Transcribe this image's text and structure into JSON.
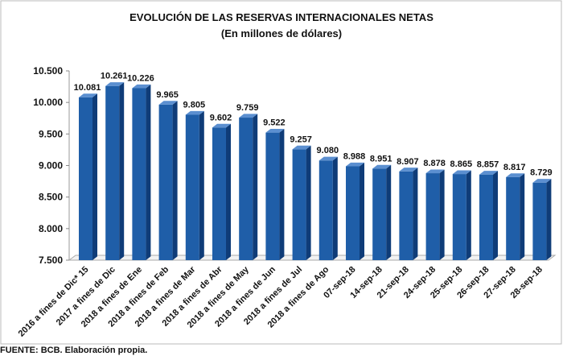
{
  "chart_data": {
    "type": "bar",
    "title": "EVOLUCIÓN DE LAS RESERVAS INTERNACIONALES NETAS",
    "subtitle": "(En millones de dólares)",
    "xlabel": "",
    "ylabel": "",
    "ylim": [
      7500,
      10500
    ],
    "yticks": [
      7500,
      8000,
      8500,
      9000,
      9500,
      10000,
      10500
    ],
    "ytick_labels": [
      "7.500",
      "8.000",
      "8.500",
      "9.000",
      "9.500",
      "10.000",
      "10.500"
    ],
    "categories": [
      "2016 a fines de Dic* 15",
      "2017 a fines de Dic",
      "2018 a fines de Ene",
      "2018 a fines de Feb",
      "2018 a fines de Mar",
      "2018 a fines de Abr",
      "2018 a fines de May",
      "2018 a fines de Jun",
      "2018 a fines de Jul",
      "2018 a fines de Ago",
      "07-sep-18",
      "14-sep-18",
      "21-sep-18",
      "24-sep-18",
      "25-sep-18",
      "26-sep-18",
      "27-sep-18",
      "28-sep-18"
    ],
    "values": [
      10081,
      10261,
      10226,
      9965,
      9805,
      9602,
      9759,
      9522,
      9257,
      9080,
      8988,
      8951,
      8907,
      8878,
      8865,
      8857,
      8817,
      8729
    ],
    "data_labels": [
      "10.081",
      "10.261",
      "10.226",
      "9.965",
      "9.805",
      "9.602",
      "9.759",
      "9.522",
      "9.257",
      "9.080",
      "8.988",
      "8.951",
      "8.907",
      "8.878",
      "8.865",
      "8.857",
      "8.817",
      "8.729"
    ],
    "bar_color": "#1f5ea8",
    "legend": "none",
    "grid": false
  },
  "source": "FUENTE: BCB. Elaboración propia."
}
